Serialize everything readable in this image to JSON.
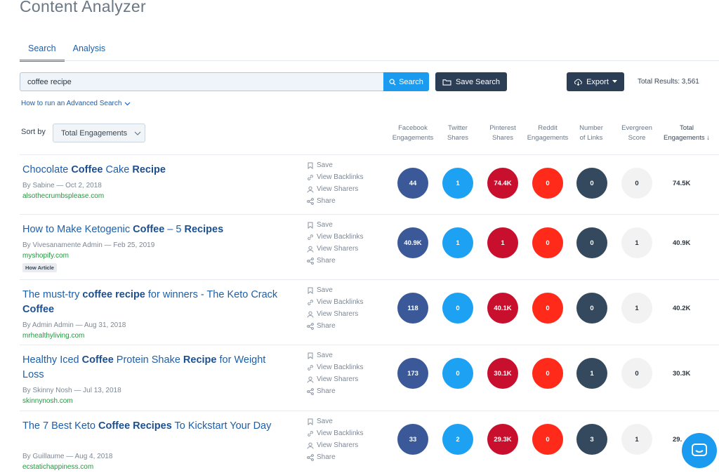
{
  "app": {
    "title": "Content Analyzer"
  },
  "tabs": [
    {
      "label": "Search",
      "active": true
    },
    {
      "label": "Analysis",
      "active": false
    }
  ],
  "search": {
    "value": "coffee recipe",
    "button_label": "Search",
    "save_label": "Save Search"
  },
  "export": {
    "label": "Export"
  },
  "total_results": "Total Results: 3,561",
  "advanced_link": "How to run an Advanced Search",
  "sort": {
    "label": "Sort by",
    "selected": "Total Engagements"
  },
  "columns": [
    {
      "line1": "Facebook",
      "line2": "Engagements"
    },
    {
      "line1": "Twitter",
      "line2": "Shares"
    },
    {
      "line1": "Pinterest",
      "line2": "Shares"
    },
    {
      "line1": "Reddit",
      "line2": "Engagements"
    },
    {
      "line1": "Number",
      "line2": "of Links"
    },
    {
      "line1": "Evergreen",
      "line2": "Score"
    },
    {
      "line1": "Total",
      "line2": "Engagements"
    }
  ],
  "actions": {
    "save": "Save",
    "backlinks": "View Backlinks",
    "sharers": "View Sharers",
    "share": "Share"
  },
  "colors": {
    "facebook": "#3b5998",
    "twitter": "#1da1f2",
    "pinterest": "#c8102e",
    "reddit": "#ff2a1a",
    "links": "#34495e",
    "evergreen": "#f2f2f2",
    "accent": "#1a9bf0"
  },
  "results": [
    {
      "title_html_parts": [
        [
          "Chocolate ",
          false
        ],
        [
          "Coffee",
          true
        ],
        [
          " Cake ",
          false
        ],
        [
          "Recipe",
          true
        ]
      ],
      "meta": "By Sabine — Oct 2, 2018",
      "domain": "alsothecrumbsplease.com",
      "badge": "",
      "fb": "44",
      "tw": "1",
      "pi": "74.4K",
      "rd": "0",
      "links": "0",
      "ev": "0",
      "total": "74.5K"
    },
    {
      "title_html_parts": [
        [
          "How to Make Ketogenic ",
          false
        ],
        [
          "Coffee",
          true
        ],
        [
          " – 5 ",
          false
        ],
        [
          "Recipes",
          true
        ]
      ],
      "meta": "By Vivesanamente Admin — Feb 25, 2019",
      "domain": "myshopify.com",
      "badge": "How Article",
      "fb": "40.9K",
      "tw": "1",
      "pi": "1",
      "rd": "0",
      "links": "0",
      "ev": "1",
      "total": "40.9K"
    },
    {
      "title_html_parts": [
        [
          "The must-try ",
          false
        ],
        [
          "coffee recipe",
          true
        ],
        [
          " for winners - The Keto Crack ",
          false
        ],
        [
          "Coffee",
          true
        ]
      ],
      "meta": "By Admin Admin — Aug 31, 2018",
      "domain": "mrhealthyliving.com",
      "badge": "",
      "fb": "118",
      "tw": "0",
      "pi": "40.1K",
      "rd": "0",
      "links": "0",
      "ev": "1",
      "total": "40.2K"
    },
    {
      "title_html_parts": [
        [
          "Healthy Iced ",
          false
        ],
        [
          "Coffee",
          true
        ],
        [
          " Protein Shake ",
          false
        ],
        [
          "Recipe",
          true
        ],
        [
          " for Weight Loss",
          false
        ]
      ],
      "meta": "By Skinny Nosh — Jul 13, 2018",
      "domain": "skinnynosh.com",
      "badge": "",
      "fb": "173",
      "tw": "0",
      "pi": "30.1K",
      "rd": "0",
      "links": "1",
      "ev": "0",
      "total": "30.3K"
    },
    {
      "title_html_parts": [
        [
          "The 7 Best Keto ",
          false
        ],
        [
          "Coffee Recipes",
          true
        ],
        [
          " To Kickstart Your Day",
          false
        ]
      ],
      "meta": "By Guillaume — Aug 4, 2018",
      "domain": "ecstatichappiness.com",
      "badge": "",
      "fb": "33",
      "tw": "2",
      "pi": "29.3K",
      "rd": "0",
      "links": "3",
      "ev": "1",
      "total": "29."
    }
  ]
}
